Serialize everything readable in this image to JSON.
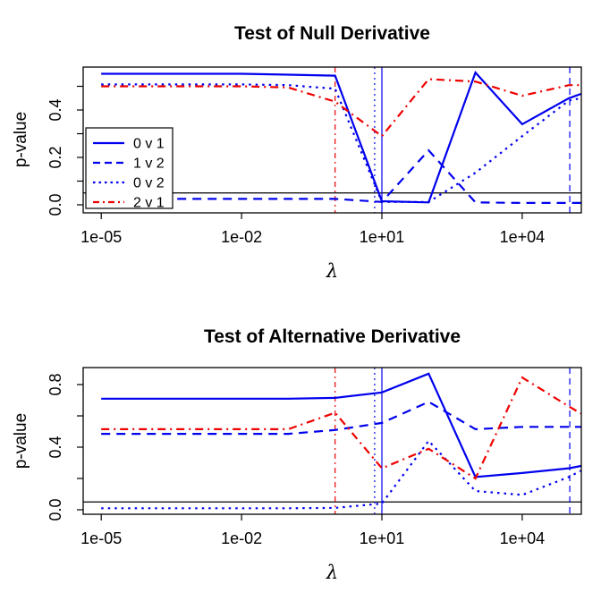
{
  "figure": {
    "background": "#ffffff",
    "colors": {
      "blue": "#0000ee",
      "red": "#ee0000",
      "black": "#000000"
    }
  },
  "chart_data": [
    {
      "id": "null-derivative",
      "type": "line",
      "title": "Test of Null Derivative",
      "xlabel": "λ",
      "ylabel": "p-value",
      "x_scale": "log10",
      "x": [
        1e-05,
        0.0001,
        0.001,
        0.01,
        0.1,
        1,
        10,
        100,
        1000,
        10000,
        100000,
        180000
      ],
      "x_ticks": [
        {
          "label": "1e-05",
          "value": 1e-05
        },
        {
          "label": "1e-02",
          "value": 0.01
        },
        {
          "label": "1e+01",
          "value": 10
        },
        {
          "label": "1e+04",
          "value": 10000
        }
      ],
      "y_ticks": [
        {
          "label": "0.0",
          "value": 0.0
        },
        {
          "label": "0.2",
          "value": 0.2
        },
        {
          "label": "0.4",
          "value": 0.4
        }
      ],
      "y_minor_ticks": [
        0.1,
        0.3,
        0.5
      ],
      "ylim": [
        -0.03,
        0.58
      ],
      "hline": 0.05,
      "vlines": [
        {
          "x": 1,
          "color": "red",
          "style": "dotdash"
        },
        {
          "x": 7,
          "color": "blue",
          "style": "dotted"
        },
        {
          "x": 10,
          "color": "blue",
          "style": "solid"
        },
        {
          "x": 104000,
          "color": "blue",
          "style": "dashed"
        }
      ],
      "legend": true,
      "series": [
        {
          "id": "0v1",
          "name": "0 v 1",
          "color": "blue",
          "style": "solid",
          "values": [
            0.553,
            0.553,
            0.553,
            0.553,
            0.549,
            0.545,
            0.015,
            0.01,
            0.558,
            0.34,
            0.45,
            0.468
          ]
        },
        {
          "id": "1v2",
          "name": "1 v 2",
          "color": "blue",
          "style": "dashed",
          "values": [
            0.025,
            0.025,
            0.025,
            0.025,
            0.025,
            0.025,
            0.012,
            0.23,
            0.01,
            0.008,
            0.008,
            0.008
          ]
        },
        {
          "id": "0v2",
          "name": "0 v 2",
          "color": "blue",
          "style": "dotted",
          "values": [
            0.508,
            0.508,
            0.508,
            0.508,
            0.505,
            0.49,
            0.012,
            0.012,
            0.135,
            0.29,
            0.44,
            0.45
          ]
        },
        {
          "id": "2v1",
          "name": "2 v 1",
          "color": "red",
          "style": "dotdash",
          "values": [
            0.5,
            0.5,
            0.5,
            0.5,
            0.495,
            0.435,
            0.29,
            0.53,
            0.52,
            0.46,
            0.505,
            0.505
          ]
        }
      ]
    },
    {
      "id": "alternative-derivative",
      "type": "line",
      "title": "Test of Alternative Derivative",
      "xlabel": "λ",
      "ylabel": "p-value",
      "x_scale": "log10",
      "x": [
        1e-05,
        0.0001,
        0.001,
        0.01,
        0.1,
        1,
        10,
        100,
        1000,
        10000,
        100000,
        180000
      ],
      "x_ticks": [
        {
          "label": "1e-05",
          "value": 1e-05
        },
        {
          "label": "1e-02",
          "value": 0.01
        },
        {
          "label": "1e+01",
          "value": 10
        },
        {
          "label": "1e+04",
          "value": 10000
        }
      ],
      "y_ticks": [
        {
          "label": "0.0",
          "value": 0.0
        },
        {
          "label": "0.4",
          "value": 0.4
        },
        {
          "label": "0.8",
          "value": 0.8
        }
      ],
      "y_minor_ticks": [
        0.2,
        0.6
      ],
      "ylim": [
        -0.03,
        0.9
      ],
      "hline": 0.05,
      "vlines": [
        {
          "x": 1,
          "color": "red",
          "style": "dotdash"
        },
        {
          "x": 7,
          "color": "blue",
          "style": "dotted"
        },
        {
          "x": 10,
          "color": "blue",
          "style": "solid"
        },
        {
          "x": 104000,
          "color": "blue",
          "style": "dashed"
        }
      ],
      "legend": false,
      "series": [
        {
          "id": "0v1",
          "name": "0 v 1",
          "color": "blue",
          "style": "solid",
          "values": [
            0.71,
            0.71,
            0.71,
            0.71,
            0.71,
            0.715,
            0.75,
            0.87,
            0.21,
            0.235,
            0.265,
            0.28
          ]
        },
        {
          "id": "1v2",
          "name": "1 v 2",
          "color": "blue",
          "style": "dashed",
          "values": [
            0.485,
            0.485,
            0.485,
            0.485,
            0.485,
            0.51,
            0.555,
            0.69,
            0.515,
            0.53,
            0.53,
            0.53
          ]
        },
        {
          "id": "0v2",
          "name": "0 v 2",
          "color": "blue",
          "style": "dotted",
          "values": [
            0.01,
            0.01,
            0.01,
            0.01,
            0.01,
            0.012,
            0.04,
            0.44,
            0.12,
            0.095,
            0.21,
            0.25
          ]
        },
        {
          "id": "2v1",
          "name": "2 v 1",
          "color": "red",
          "style": "dotdash",
          "values": [
            0.515,
            0.515,
            0.515,
            0.515,
            0.515,
            0.62,
            0.265,
            0.39,
            0.2,
            0.845,
            0.66,
            0.615
          ]
        }
      ]
    }
  ]
}
